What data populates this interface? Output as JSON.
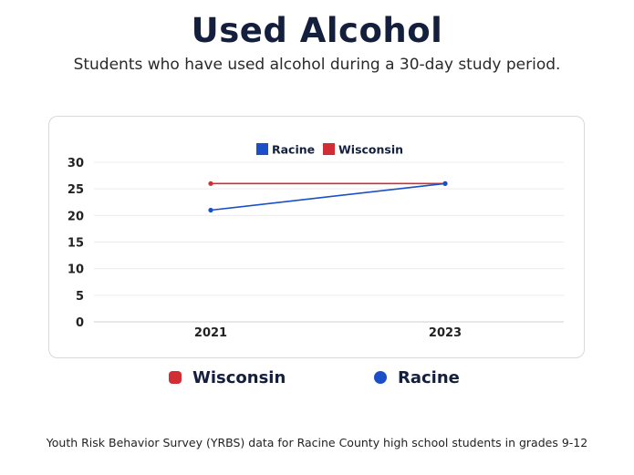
{
  "header": {
    "title": "Used Alcohol",
    "subtitle": "Students who have used alcohol during a 30-day study period."
  },
  "chart_data": {
    "type": "line",
    "categories": [
      "2021",
      "2023"
    ],
    "series": [
      {
        "name": "Racine",
        "values": [
          21,
          26
        ],
        "color": "#1a4fc7"
      },
      {
        "name": "Wisconsin",
        "values": [
          26,
          26
        ],
        "color": "#d12d35"
      }
    ],
    "ylim": [
      0,
      30
    ],
    "yticks": [
      "0",
      "5",
      "10",
      "15",
      "20",
      "25",
      "30"
    ],
    "grid": true,
    "legend": "top-center"
  },
  "outer_legend": [
    {
      "label": "Wisconsin",
      "color": "#d12d35"
    },
    {
      "label": "Racine",
      "color": "#1a4fc7"
    }
  ],
  "footer": "Youth Risk Behavior Survey (YRBS) data for Racine County high school students in grades 9-12"
}
